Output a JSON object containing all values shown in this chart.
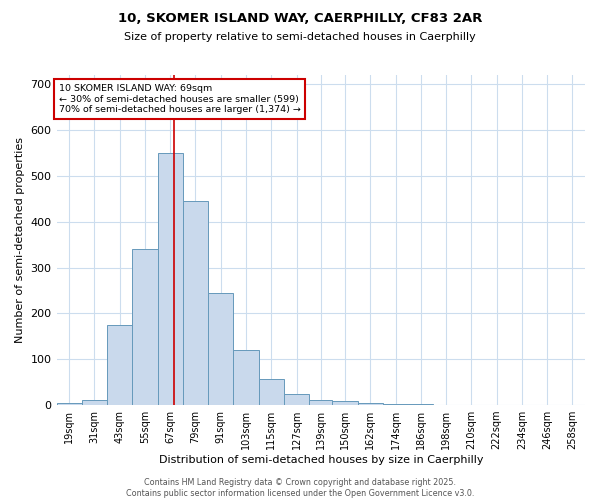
{
  "title_line1": "10, SKOMER ISLAND WAY, CAERPHILLY, CF83 2AR",
  "title_line2": "Size of property relative to semi-detached houses in Caerphilly",
  "xlabel": "Distribution of semi-detached houses by size in Caerphilly",
  "ylabel": "Number of semi-detached properties",
  "bin_labels": [
    "19sqm",
    "31sqm",
    "43sqm",
    "55sqm",
    "67sqm",
    "79sqm",
    "91sqm",
    "103sqm",
    "115sqm",
    "127sqm",
    "139sqm",
    "150sqm",
    "162sqm",
    "174sqm",
    "186sqm",
    "198sqm",
    "210sqm",
    "222sqm",
    "234sqm",
    "246sqm",
    "258sqm"
  ],
  "bin_edges": [
    13,
    25,
    37,
    49,
    61,
    73,
    85,
    97,
    109,
    121,
    133,
    144,
    156,
    168,
    180,
    192,
    204,
    216,
    228,
    240,
    252,
    264
  ],
  "counts": [
    5,
    10,
    175,
    340,
    550,
    445,
    245,
    120,
    57,
    25,
    10,
    8,
    5,
    3,
    3,
    1,
    0,
    0,
    0,
    0,
    0
  ],
  "bar_color": "#c9d9ec",
  "bar_edge_color": "#6699bb",
  "property_size": 69,
  "red_line_color": "#cc0000",
  "annotation_text": "10 SKOMER ISLAND WAY: 69sqm\n← 30% of semi-detached houses are smaller (599)\n70% of semi-detached houses are larger (1,374) →",
  "annotation_box_color": "#ffffff",
  "annotation_box_edge": "#cc0000",
  "footer_line1": "Contains HM Land Registry data © Crown copyright and database right 2025.",
  "footer_line2": "Contains public sector information licensed under the Open Government Licence v3.0.",
  "ylim": [
    0,
    720
  ],
  "background_color": "#ffffff",
  "grid_color": "#ccddee",
  "title1_fontsize": 9.5,
  "title2_fontsize": 8,
  "ylabel_fontsize": 8,
  "xlabel_fontsize": 8,
  "tick_fontsize": 7,
  "annotation_fontsize": 6.8,
  "footer_fontsize": 5.8
}
